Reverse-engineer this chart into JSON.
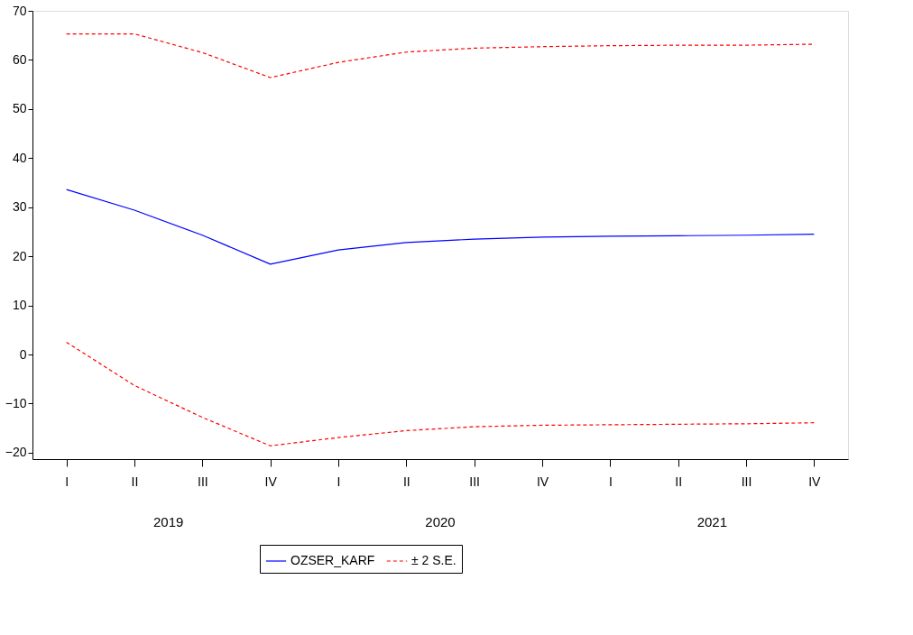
{
  "chart_data": {
    "type": "line",
    "categories": [
      "I",
      "II",
      "III",
      "IV",
      "I",
      "II",
      "III",
      "IV",
      "I",
      "II",
      "III",
      "IV"
    ],
    "series": [
      {
        "name": "OZSER_KARF",
        "color": "#0000ff",
        "line_style": "solid",
        "values": [
          33.6,
          29.4,
          24.3,
          18.4,
          21.3,
          22.8,
          23.5,
          23.9,
          24.1,
          24.2,
          24.3,
          24.5
        ]
      },
      {
        "name": "± 2 S.E.",
        "color": "#ff0000",
        "line_style": "dashed",
        "values": [
          65.3,
          65.3,
          61.5,
          56.4,
          59.5,
          61.6,
          62.4,
          62.7,
          62.9,
          63.0,
          63.0,
          63.2
        ]
      },
      {
        "color": "#ff0000",
        "line_style": "dashed",
        "values": [
          2.5,
          -6.3,
          -12.8,
          -18.6,
          -16.9,
          -15.5,
          -14.7,
          -14.4,
          -14.3,
          -14.2,
          -14.1,
          -13.9
        ]
      }
    ],
    "annotations": [
      "2019",
      "2020",
      "2021"
    ],
    "ylim": [
      -21.3,
      70
    ],
    "yticks": [
      -20,
      -10,
      0,
      10,
      20,
      30,
      40,
      50,
      60,
      70
    ],
    "grid": false,
    "legend": "bottom",
    "marker": "none"
  }
}
